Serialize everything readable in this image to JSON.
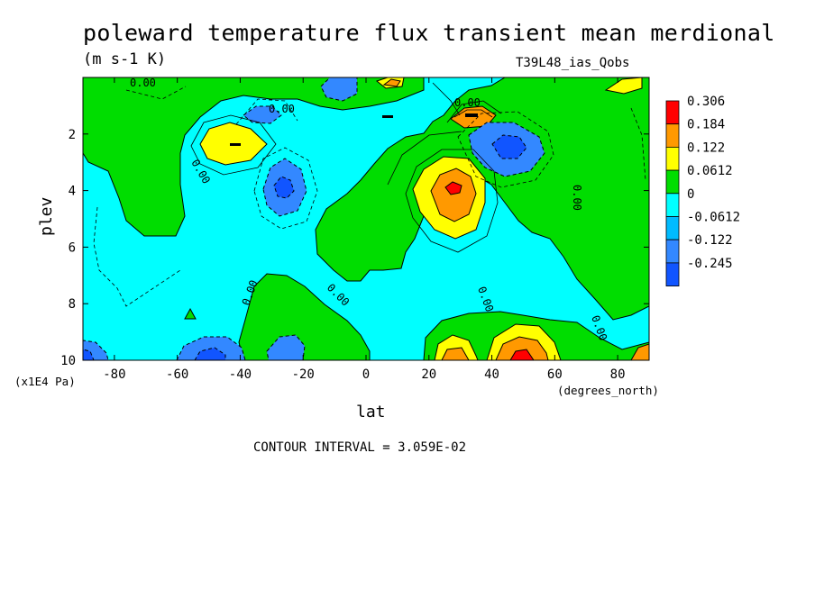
{
  "chart_data": {
    "type": "contour",
    "title": "poleward temperature flux transient mean merdional",
    "units": "(m s-1 K)",
    "dataset": "T39L48_ias_Qobs",
    "xlabel": "lat",
    "x_units": "(degrees_north)",
    "ylabel": "plev",
    "y_units": "(x1E4 Pa)",
    "xlim": [
      -90,
      90
    ],
    "ylim": [
      10,
      0
    ],
    "x_ticks": [
      "-80",
      "-60",
      "-40",
      "-20",
      "0",
      "20",
      "40",
      "60",
      "80"
    ],
    "y_ticks": [
      "2",
      "4",
      "6",
      "8",
      "10"
    ],
    "contour_interval_text": "CONTOUR INTERVAL = 3.059E-02",
    "contour_label": "0.00",
    "colorbar": {
      "levels": [
        "0.306",
        "0.184",
        "0.122",
        "0.0612",
        "0",
        "-0.0612",
        "-0.122",
        "-0.245"
      ],
      "colors": [
        "#ff0000",
        "#ff9900",
        "#ffff00",
        "#00dd00",
        "#00ffff",
        "#00bbff",
        "#3388ff",
        "#1155ff"
      ]
    },
    "features": [
      {
        "sign": "positive",
        "lat": -40,
        "plev": 2.5,
        "peak": 0.122
      },
      {
        "sign": "positive",
        "lat": 27,
        "plev": 3.9,
        "peak": 0.306
      },
      {
        "sign": "positive",
        "lat": 47,
        "plev": 10,
        "peak": 0.306
      },
      {
        "sign": "positive",
        "lat": 33,
        "plev": 1.4,
        "peak": 0.184
      },
      {
        "sign": "negative",
        "lat": -27,
        "plev": 3.9,
        "peak": -0.122
      },
      {
        "sign": "negative",
        "lat": 44,
        "plev": 2.5,
        "peak": -0.122
      },
      {
        "sign": "negative",
        "lat": -36,
        "plev": 1.3,
        "peak": -0.122
      },
      {
        "sign": "negative",
        "lat": -45,
        "plev": 9.8,
        "peak": -0.122
      },
      {
        "sign": "negative",
        "lat": -10,
        "plev": 0.6,
        "peak": -0.122
      },
      {
        "sign": "negative",
        "lat": -90,
        "plev": 9.9,
        "peak": -0.122
      }
    ]
  }
}
